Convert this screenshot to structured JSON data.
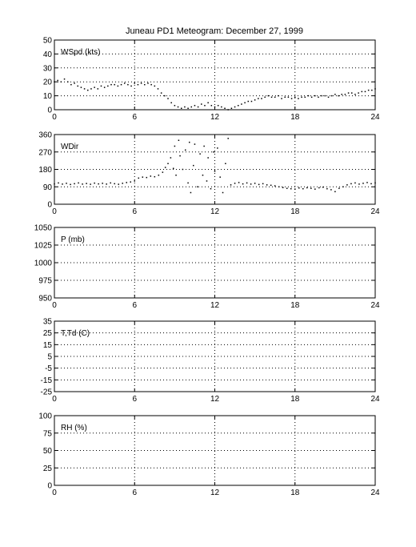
{
  "figure": {
    "title": "Juneau PD1 Meteogram:   December 27, 1999"
  },
  "chart_data": [
    {
      "type": "scatter",
      "label": "WSpd (kts)",
      "xlim": [
        0,
        24
      ],
      "ylim": [
        0,
        50
      ],
      "xticks": [
        0,
        6,
        12,
        18,
        24
      ],
      "yticks": [
        0,
        10,
        20,
        30,
        40,
        50
      ],
      "grid": true,
      "points": [
        [
          0.0,
          20
        ],
        [
          0.25,
          21
        ],
        [
          0.5,
          20
        ],
        [
          0.75,
          22
        ],
        [
          1.0,
          20
        ],
        [
          1.25,
          18
        ],
        [
          1.5,
          19
        ],
        [
          1.75,
          17
        ],
        [
          2.0,
          16
        ],
        [
          2.25,
          15
        ],
        [
          2.5,
          14
        ],
        [
          2.75,
          15
        ],
        [
          3.0,
          16
        ],
        [
          3.25,
          15
        ],
        [
          3.5,
          17
        ],
        [
          3.75,
          16
        ],
        [
          4.0,
          17
        ],
        [
          4.25,
          18
        ],
        [
          4.5,
          18
        ],
        [
          4.75,
          17
        ],
        [
          5.0,
          18
        ],
        [
          5.25,
          19
        ],
        [
          5.5,
          18
        ],
        [
          5.75,
          17
        ],
        [
          6.0,
          19
        ],
        [
          6.25,
          18
        ],
        [
          6.5,
          19
        ],
        [
          6.75,
          18
        ],
        [
          7.0,
          19
        ],
        [
          7.25,
          18
        ],
        [
          7.5,
          17
        ],
        [
          7.75,
          15
        ],
        [
          8.0,
          12
        ],
        [
          8.25,
          10
        ],
        [
          8.5,
          8
        ],
        [
          8.75,
          5
        ],
        [
          9.0,
          3
        ],
        [
          9.25,
          2
        ],
        [
          9.5,
          1
        ],
        [
          9.75,
          2
        ],
        [
          10.0,
          1
        ],
        [
          10.25,
          2
        ],
        [
          10.5,
          3
        ],
        [
          10.75,
          2
        ],
        [
          11.0,
          4
        ],
        [
          11.25,
          3
        ],
        [
          11.5,
          5
        ],
        [
          11.75,
          3
        ],
        [
          12.0,
          2
        ],
        [
          12.25,
          3
        ],
        [
          12.5,
          2
        ],
        [
          12.75,
          1
        ],
        [
          13.0,
          0
        ],
        [
          13.25,
          1
        ],
        [
          13.5,
          2
        ],
        [
          13.75,
          3
        ],
        [
          14.0,
          4
        ],
        [
          14.25,
          5
        ],
        [
          14.5,
          6
        ],
        [
          14.75,
          6
        ],
        [
          15.0,
          7
        ],
        [
          15.25,
          8
        ],
        [
          15.5,
          8
        ],
        [
          15.75,
          9
        ],
        [
          16.0,
          10
        ],
        [
          16.25,
          9
        ],
        [
          16.5,
          9
        ],
        [
          16.75,
          10
        ],
        [
          17.0,
          8
        ],
        [
          17.25,
          9
        ],
        [
          17.5,
          9
        ],
        [
          17.75,
          8
        ],
        [
          18.0,
          9
        ],
        [
          18.25,
          8
        ],
        [
          18.5,
          9
        ],
        [
          18.75,
          9
        ],
        [
          19.0,
          10
        ],
        [
          19.25,
          9
        ],
        [
          19.5,
          10
        ],
        [
          19.75,
          9
        ],
        [
          20.0,
          10
        ],
        [
          20.25,
          10
        ],
        [
          20.5,
          9
        ],
        [
          20.75,
          10
        ],
        [
          21.0,
          11
        ],
        [
          21.25,
          10
        ],
        [
          21.5,
          11
        ],
        [
          21.75,
          11
        ],
        [
          22.0,
          12
        ],
        [
          22.25,
          12
        ],
        [
          22.5,
          11
        ],
        [
          22.75,
          12
        ],
        [
          23.0,
          13
        ],
        [
          23.25,
          13
        ],
        [
          23.5,
          14
        ],
        [
          23.75,
          14
        ],
        [
          24.0,
          15
        ]
      ]
    },
    {
      "type": "scatter",
      "label": "WDir",
      "xlim": [
        0,
        24
      ],
      "ylim": [
        0,
        360
      ],
      "xticks": [
        0,
        6,
        12,
        18,
        24
      ],
      "yticks": [
        0,
        90,
        180,
        270,
        360
      ],
      "grid": true,
      "points": [
        [
          0.0,
          105
        ],
        [
          0.3,
          110
        ],
        [
          0.6,
          104
        ],
        [
          0.9,
          108
        ],
        [
          1.2,
          102
        ],
        [
          1.5,
          106
        ],
        [
          1.8,
          110
        ],
        [
          2.1,
          104
        ],
        [
          2.4,
          107
        ],
        [
          2.7,
          103
        ],
        [
          3.0,
          109
        ],
        [
          3.3,
          105
        ],
        [
          3.6,
          108
        ],
        [
          3.9,
          104
        ],
        [
          4.2,
          110
        ],
        [
          4.5,
          106
        ],
        [
          4.8,
          103
        ],
        [
          5.1,
          108
        ],
        [
          5.4,
          112
        ],
        [
          5.7,
          115
        ],
        [
          6.0,
          120
        ],
        [
          6.3,
          135
        ],
        [
          6.6,
          140
        ],
        [
          6.9,
          138
        ],
        [
          7.2,
          145
        ],
        [
          7.5,
          142
        ],
        [
          7.8,
          150
        ],
        [
          8.1,
          165
        ],
        [
          8.3,
          190
        ],
        [
          8.5,
          210
        ],
        [
          8.7,
          240
        ],
        [
          8.9,
          185
        ],
        [
          9.0,
          300
        ],
        [
          9.1,
          150
        ],
        [
          9.3,
          330
        ],
        [
          9.4,
          250
        ],
        [
          9.6,
          180
        ],
        [
          9.8,
          280
        ],
        [
          10.0,
          110
        ],
        [
          10.1,
          320
        ],
        [
          10.2,
          60
        ],
        [
          10.4,
          200
        ],
        [
          10.5,
          310
        ],
        [
          10.7,
          90
        ],
        [
          10.9,
          260
        ],
        [
          11.1,
          150
        ],
        [
          11.2,
          300
        ],
        [
          11.4,
          120
        ],
        [
          11.5,
          240
        ],
        [
          11.7,
          80
        ],
        [
          11.9,
          270
        ],
        [
          12.0,
          170
        ],
        [
          12.2,
          290
        ],
        [
          12.4,
          140
        ],
        [
          12.6,
          60
        ],
        [
          12.8,
          210
        ],
        [
          13.0,
          340
        ],
        [
          13.2,
          100
        ],
        [
          13.5,
          108
        ],
        [
          13.8,
          112
        ],
        [
          14.1,
          105
        ],
        [
          14.4,
          110
        ],
        [
          14.7,
          104
        ],
        [
          15.0,
          108
        ],
        [
          15.3,
          102
        ],
        [
          15.6,
          106
        ],
        [
          15.9,
          100
        ],
        [
          16.2,
          98
        ],
        [
          16.5,
          95
        ],
        [
          16.8,
          90
        ],
        [
          17.1,
          86
        ],
        [
          17.4,
          82
        ],
        [
          17.7,
          80
        ],
        [
          18.0,
          78
        ],
        [
          18.3,
          84
        ],
        [
          18.6,
          80
        ],
        [
          18.9,
          85
        ],
        [
          19.2,
          82
        ],
        [
          19.5,
          78
        ],
        [
          19.8,
          85
        ],
        [
          20.1,
          88
        ],
        [
          20.4,
          80
        ],
        [
          20.7,
          75
        ],
        [
          21.0,
          65
        ],
        [
          21.3,
          82
        ],
        [
          21.6,
          90
        ],
        [
          21.9,
          100
        ],
        [
          22.2,
          106
        ],
        [
          22.5,
          110
        ],
        [
          22.8,
          104
        ],
        [
          23.1,
          108
        ],
        [
          23.4,
          112
        ],
        [
          23.7,
          106
        ],
        [
          24.0,
          110
        ]
      ]
    },
    {
      "type": "scatter",
      "label": "P (mb)",
      "xlim": [
        0,
        24
      ],
      "ylim": [
        950,
        1050
      ],
      "xticks": [
        0,
        6,
        12,
        18,
        24
      ],
      "yticks": [
        950,
        975,
        1000,
        1025,
        1050
      ],
      "grid": true,
      "points": []
    },
    {
      "type": "scatter",
      "label": "T,Td (C)",
      "xlim": [
        0,
        24
      ],
      "ylim": [
        -25,
        35
      ],
      "xticks": [
        0,
        6,
        12,
        18,
        24
      ],
      "yticks": [
        -25,
        -15,
        -5,
        5,
        15,
        25,
        35
      ],
      "grid": true,
      "points": []
    },
    {
      "type": "scatter",
      "label": "RH (%)",
      "xlim": [
        0,
        24
      ],
      "ylim": [
        0,
        100
      ],
      "xticks": [
        0,
        6,
        12,
        18,
        24
      ],
      "yticks": [
        0,
        25,
        50,
        75,
        100
      ],
      "grid": true,
      "points": []
    }
  ]
}
